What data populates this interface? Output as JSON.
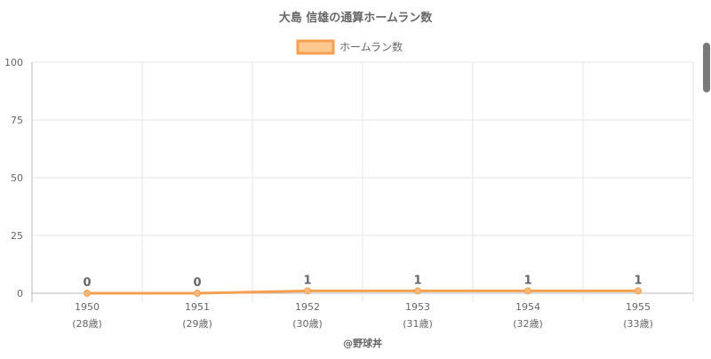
{
  "chart_data": {
    "type": "line",
    "title": "大島 信雄の通算ホームラン数",
    "legend": {
      "label": "ホームラン数",
      "placement": "top-center"
    },
    "categories": [
      "1950",
      "1951",
      "1952",
      "1953",
      "1954",
      "1955"
    ],
    "category_sublabels": [
      "(28歳)",
      "(29歳)",
      "(30歳)",
      "(31歳)",
      "(32歳)",
      "(33歳)"
    ],
    "series": [
      {
        "name": "ホームラン数",
        "values": [
          0,
          0,
          1,
          1,
          1,
          1
        ]
      }
    ],
    "ylim": [
      0,
      100
    ],
    "yticks": [
      "0",
      "25",
      "50",
      "75",
      "100"
    ],
    "grid": true,
    "xlabel": "@野球丼",
    "colors": {
      "line": "#f5a050",
      "fill": "#fbc98f",
      "point": "#f7b97a"
    }
  },
  "scrollbar": {
    "present": true
  }
}
